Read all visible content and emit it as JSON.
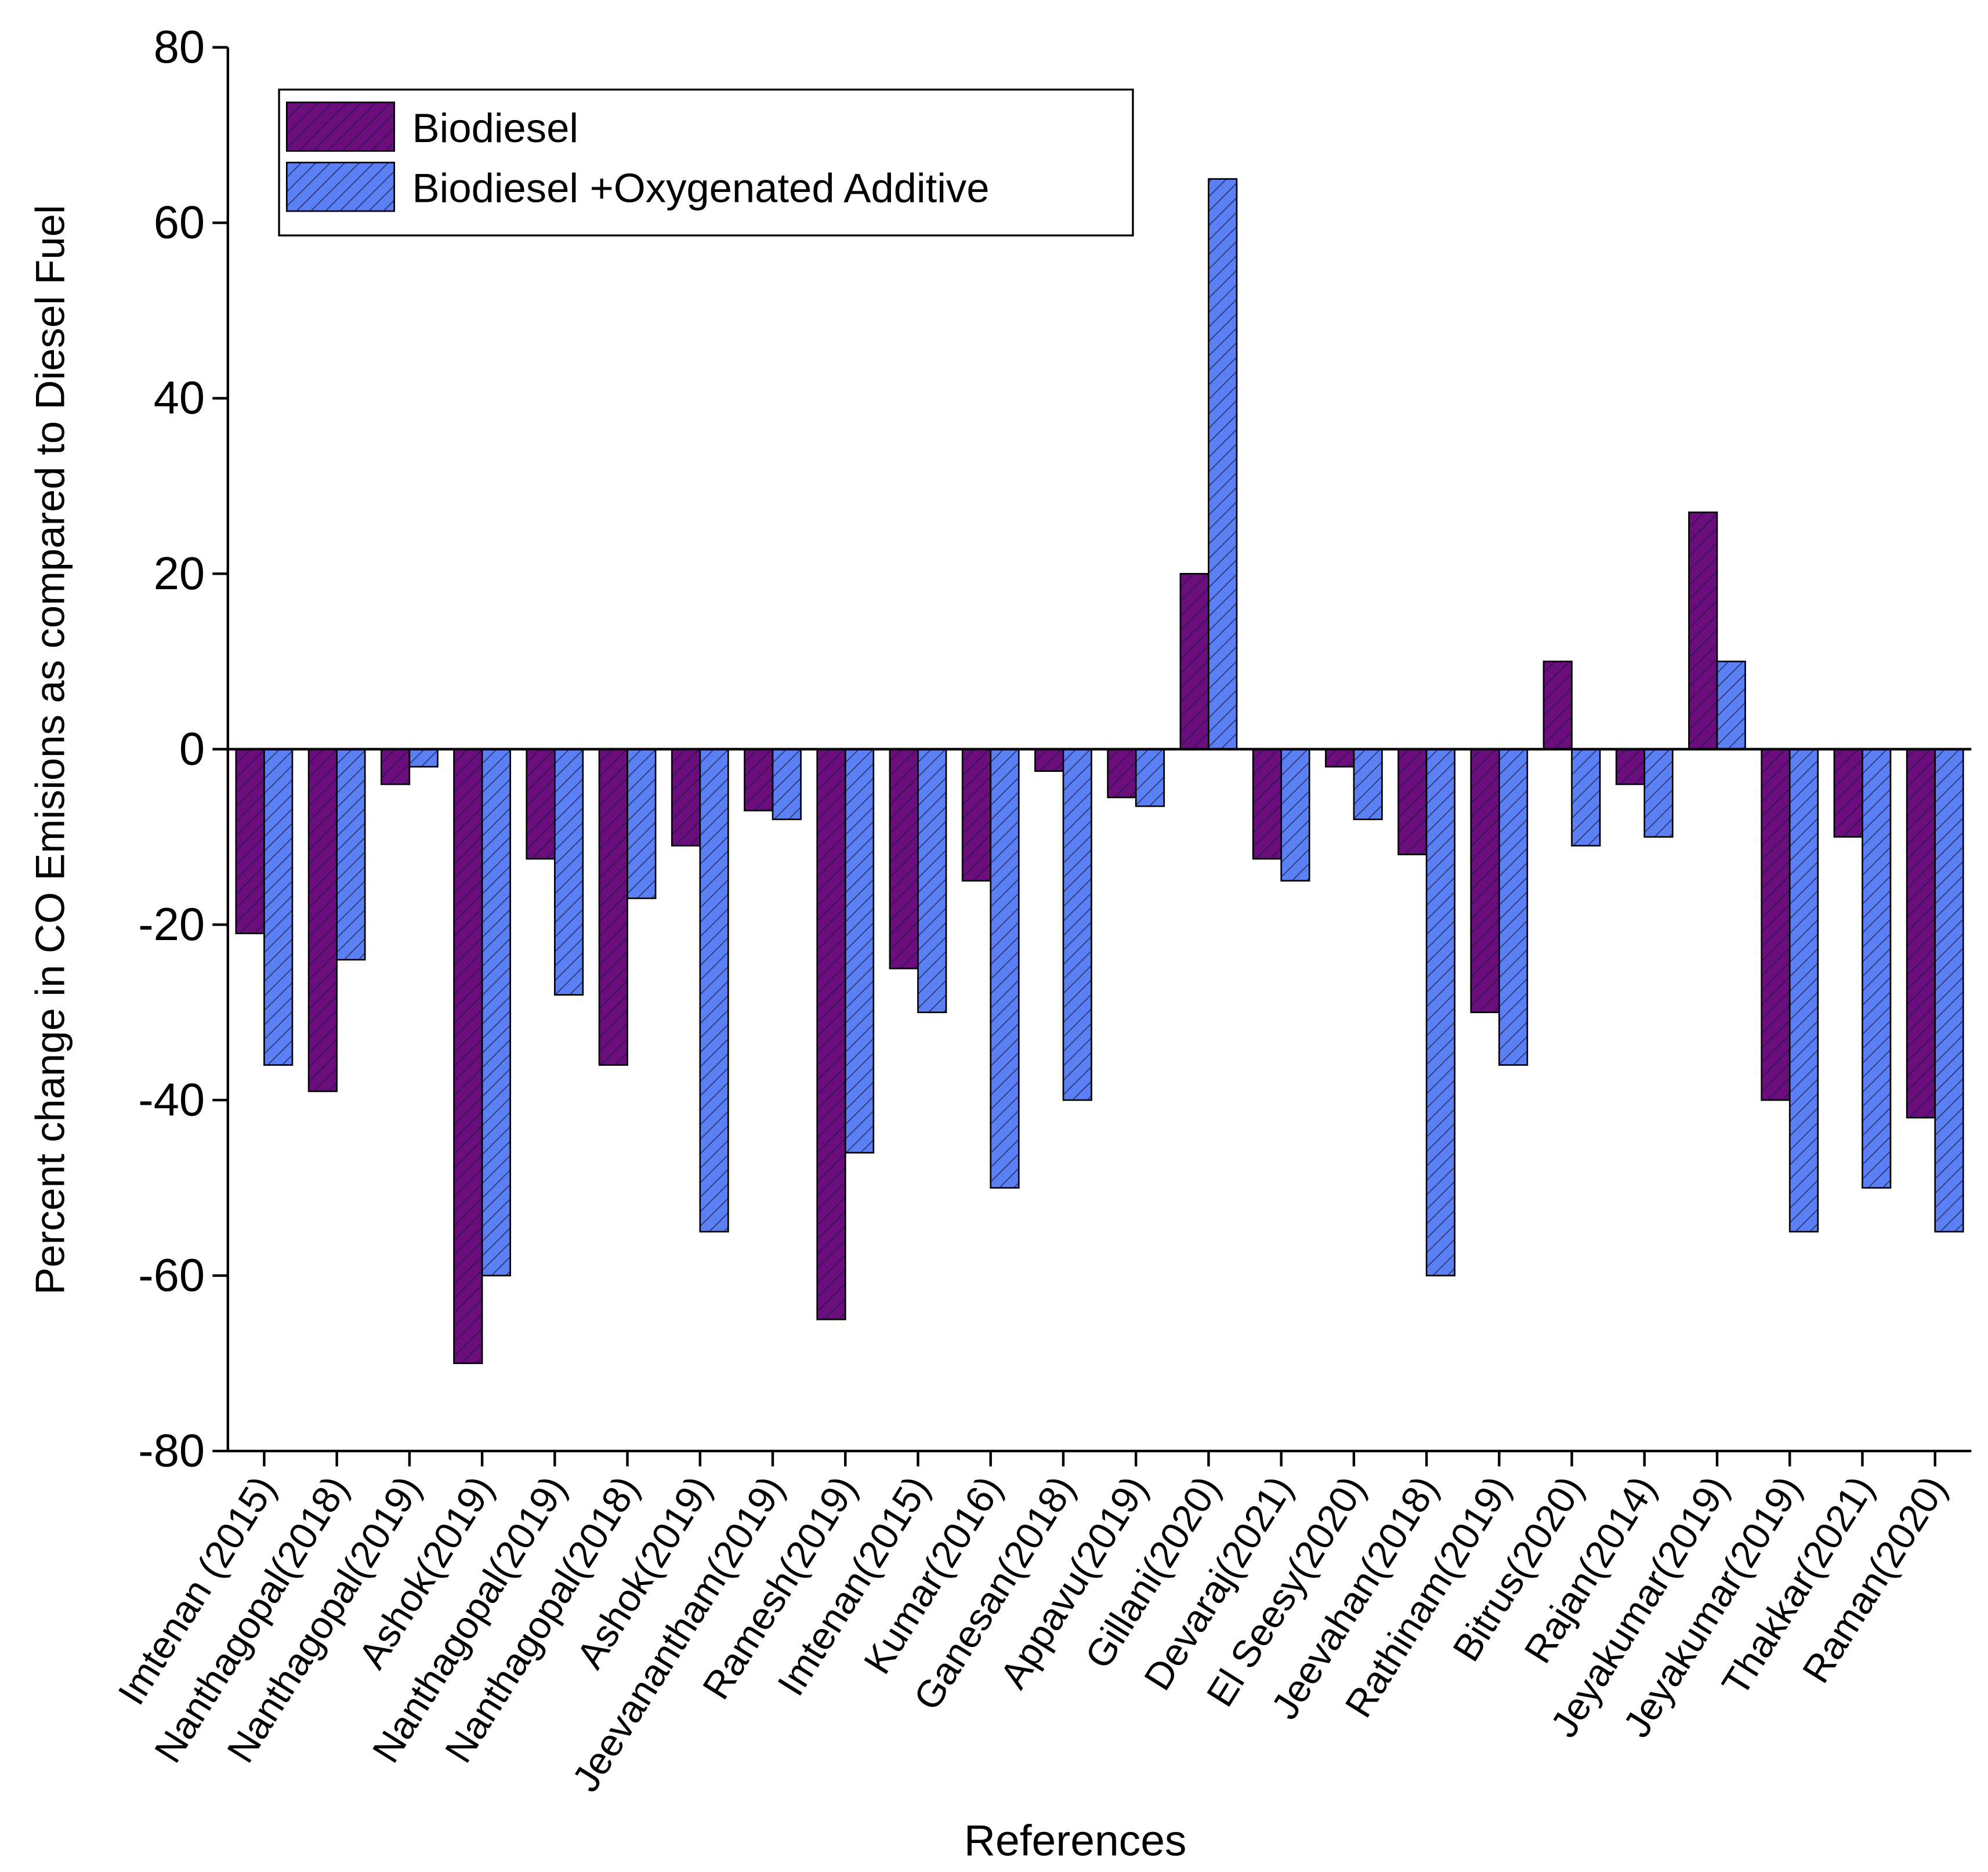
{
  "chart_data": {
    "type": "bar",
    "x_label": "References",
    "y_label": "Percent change in CO Emisions as compared to Diesel Fuel",
    "categories": [
      "Imtenan (2015)",
      "Nanthagopal(2018)",
      "Nanthagopal(2019)",
      "Ashok(2019)",
      "Nanthagopal(2019)",
      "Nanthagopal(2018)",
      "Ashok(2019)",
      "Jeevanantham(2019)",
      "Ramesh(2019)",
      "Imtenan(2015)",
      "Kumar(2016)",
      "Ganesan(2018)",
      "Appavu(2019)",
      "Gillani(2020)",
      "Devaraj(2021)",
      "El Seesy(2020)",
      "Jeevahan(2018)",
      "Rathinam(2019)",
      "Bitrus(2020)",
      "Rajan(2014)",
      "Jeyakumar(2019)",
      "Jeyakumar(2019)",
      "Thakkar(2021)",
      "Raman(2020)"
    ],
    "series": [
      {
        "name": "Biodiesel",
        "color": "#6b0d7d",
        "values": [
          -21,
          -39,
          -4,
          -70,
          -12.5,
          -36,
          -11,
          -7,
          -65,
          -25,
          -15,
          -2.5,
          -5.5,
          20,
          -12.5,
          -2,
          -12,
          -30,
          10,
          -4,
          27,
          -40,
          -10,
          -42
        ]
      },
      {
        "name": "Biodiesel +Oxygenated Additive",
        "color": "#5b80f4",
        "values": [
          -36,
          -24,
          -2,
          -60,
          -28,
          -17,
          -55,
          -8,
          -46,
          -30,
          -50,
          -40,
          -6.5,
          65,
          -15,
          -8,
          -60,
          -36,
          -11,
          -10,
          10,
          -55,
          -50,
          -55
        ]
      }
    ],
    "ylim": [
      -80,
      80
    ],
    "yticks": [
      -80,
      -60,
      -40,
      -20,
      0,
      20,
      40,
      60,
      80
    ],
    "hatch": true,
    "legend": "top-left"
  }
}
